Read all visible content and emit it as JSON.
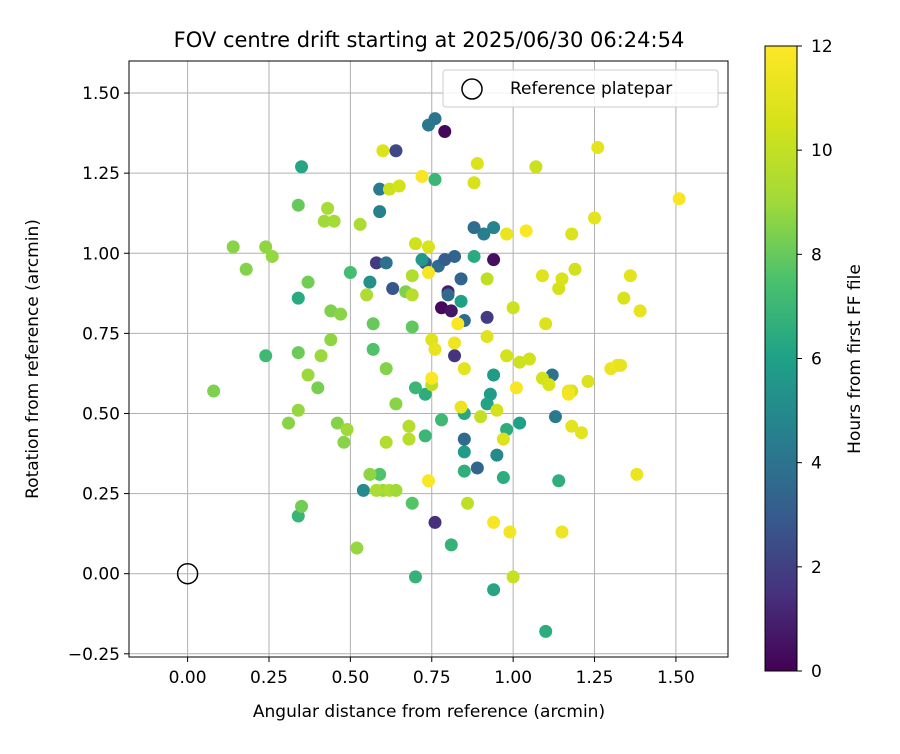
{
  "chart_data": {
    "type": "scatter",
    "title": "FOV centre drift starting at 2025/06/30 06:24:54",
    "xlabel": "Angular distance from reference (arcmin)",
    "ylabel": "Rotation from reference (arcmin)",
    "xlim": [
      -0.18,
      1.66
    ],
    "ylim": [
      -0.26,
      1.6
    ],
    "xticks": [
      "0.00",
      "0.25",
      "0.50",
      "0.75",
      "1.00",
      "1.25",
      "1.50"
    ],
    "yticks": [
      "−0.25",
      "0.00",
      "0.25",
      "0.50",
      "0.75",
      "1.00",
      "1.25",
      "1.50"
    ],
    "grid": true,
    "legend": {
      "placement": "top-right",
      "entries": [
        "Reference platepar"
      ]
    },
    "colorbar": {
      "label": "Hours from first FF file",
      "range": [
        0,
        12
      ],
      "ticks": [
        "0",
        "2",
        "4",
        "6",
        "8",
        "10",
        "12"
      ],
      "colormap": "viridis"
    },
    "reference_point": {
      "x": 0.0,
      "y": 0.0
    },
    "points": [
      [
        0.79,
        1.38,
        0.2
      ],
      [
        0.78,
        0.83,
        0.3
      ],
      [
        0.94,
        0.98,
        0.4
      ],
      [
        0.81,
        0.82,
        0.6
      ],
      [
        0.8,
        0.88,
        0.9
      ],
      [
        0.76,
        0.16,
        1.4
      ],
      [
        0.58,
        0.97,
        1.8
      ],
      [
        0.64,
        1.32,
        2.3
      ],
      [
        0.82,
        0.68,
        1.6
      ],
      [
        0.92,
        0.8,
        1.9
      ],
      [
        0.63,
        0.89,
        2.8
      ],
      [
        0.73,
        0.97,
        3.0
      ],
      [
        0.76,
        1.42,
        4.0
      ],
      [
        0.74,
        1.4,
        4.2
      ],
      [
        0.59,
        1.2,
        4.3
      ],
      [
        0.82,
        0.99,
        3.4
      ],
      [
        0.77,
        0.96,
        3.7
      ],
      [
        0.8,
        0.87,
        3.6
      ],
      [
        0.85,
        0.79,
        3.6
      ],
      [
        0.85,
        0.42,
        3.6
      ],
      [
        0.89,
        0.33,
        3.4
      ],
      [
        0.84,
        0.92,
        3.4
      ],
      [
        0.79,
        0.98,
        3.1
      ],
      [
        0.61,
        0.97,
        3.9
      ],
      [
        0.94,
        1.08,
        4.7
      ],
      [
        0.91,
        1.06,
        4.4
      ],
      [
        0.88,
        1.08,
        3.8
      ],
      [
        0.59,
        1.13,
        4.6
      ],
      [
        1.12,
        0.62,
        4.0
      ],
      [
        1.13,
        0.49,
        4.3
      ],
      [
        0.95,
        0.37,
        5.0
      ],
      [
        0.85,
        0.38,
        5.8
      ],
      [
        0.54,
        0.26,
        5.0
      ],
      [
        0.56,
        0.91,
        5.3
      ],
      [
        0.72,
        0.98,
        5.6
      ],
      [
        0.88,
        0.99,
        6.4
      ],
      [
        0.94,
        0.62,
        5.7
      ],
      [
        0.93,
        0.56,
        5.8
      ],
      [
        0.92,
        0.53,
        6.1
      ],
      [
        1.02,
        0.47,
        6.0
      ],
      [
        0.98,
        0.45,
        6.5
      ],
      [
        0.84,
        0.85,
        6.0
      ],
      [
        0.85,
        0.5,
        6.3
      ],
      [
        0.85,
        0.32,
        6.6
      ],
      [
        0.97,
        0.3,
        6.5
      ],
      [
        0.94,
        -0.05,
        6.2
      ],
      [
        1.1,
        -0.18,
        6.5
      ],
      [
        0.81,
        0.09,
        6.8
      ],
      [
        0.7,
        -0.01,
        6.8
      ],
      [
        0.73,
        0.56,
        6.5
      ],
      [
        0.73,
        0.43,
        7.0
      ],
      [
        0.7,
        0.58,
        7.0
      ],
      [
        0.78,
        0.48,
        7.1
      ],
      [
        0.35,
        1.27,
        6.2
      ],
      [
        0.34,
        0.86,
        6.4
      ],
      [
        0.34,
        0.18,
        6.9
      ],
      [
        0.24,
        0.68,
        7.1
      ],
      [
        0.5,
        0.94,
        7.3
      ],
      [
        0.57,
        0.7,
        7.6
      ],
      [
        0.59,
        0.31,
        7.6
      ],
      [
        0.69,
        0.22,
        7.7
      ],
      [
        0.69,
        0.77,
        7.9
      ],
      [
        0.76,
        1.23,
        7.0
      ],
      [
        1.14,
        0.29,
        6.6
      ],
      [
        0.57,
        0.78,
        8.0
      ],
      [
        0.34,
        1.15,
        8.0
      ],
      [
        0.34,
        0.69,
        8.1
      ],
      [
        0.4,
        0.58,
        8.3
      ],
      [
        0.37,
        0.91,
        8.2
      ],
      [
        0.44,
        0.82,
        8.4
      ],
      [
        0.46,
        0.47,
        8.5
      ],
      [
        0.48,
        0.41,
        8.6
      ],
      [
        0.52,
        0.08,
        8.8
      ],
      [
        0.56,
        0.31,
        8.7
      ],
      [
        0.6,
        0.26,
        8.9
      ],
      [
        0.64,
        0.53,
        8.6
      ],
      [
        0.61,
        0.64,
        8.5
      ],
      [
        0.67,
        0.88,
        8.4
      ],
      [
        0.35,
        0.21,
        8.2
      ],
      [
        0.31,
        0.47,
        8.6
      ],
      [
        0.34,
        0.51,
        8.8
      ],
      [
        0.37,
        0.62,
        8.9
      ],
      [
        0.41,
        0.68,
        8.9
      ],
      [
        0.44,
        0.73,
        8.7
      ],
      [
        0.47,
        0.81,
        8.6
      ],
      [
        0.49,
        0.45,
        9.0
      ],
      [
        0.08,
        0.57,
        8.4
      ],
      [
        0.18,
        0.95,
        8.5
      ],
      [
        0.14,
        1.02,
        8.6
      ],
      [
        0.24,
        1.02,
        8.7
      ],
      [
        0.26,
        0.99,
        8.8
      ],
      [
        0.42,
        1.1,
        9.0
      ],
      [
        0.45,
        1.1,
        9.1
      ],
      [
        0.43,
        1.14,
        9.2
      ],
      [
        0.53,
        1.09,
        9.3
      ],
      [
        0.55,
        0.87,
        9.4
      ],
      [
        0.58,
        0.26,
        9.3
      ],
      [
        0.62,
        0.26,
        9.4
      ],
      [
        0.64,
        0.26,
        9.0
      ],
      [
        0.61,
        0.41,
        9.5
      ],
      [
        0.68,
        0.46,
        9.6
      ],
      [
        0.68,
        0.42,
        9.7
      ],
      [
        0.69,
        0.93,
        9.5
      ],
      [
        0.69,
        0.87,
        9.7
      ],
      [
        0.75,
        0.59,
        9.8
      ],
      [
        0.86,
        0.22,
        9.9
      ],
      [
        0.9,
        0.49,
        10.0
      ],
      [
        0.92,
        0.92,
        9.9
      ],
      [
        1.0,
        -0.01,
        10.1
      ],
      [
        1.0,
        0.83,
        10.3
      ],
      [
        0.95,
        0.51,
        10.5
      ],
      [
        0.98,
        0.68,
        10.5
      ],
      [
        1.02,
        0.66,
        10.3
      ],
      [
        1.05,
        0.67,
        10.4
      ],
      [
        1.07,
        1.27,
        10.2
      ],
      [
        1.09,
        0.61,
        10.5
      ],
      [
        1.11,
        0.59,
        10.7
      ],
      [
        1.14,
        0.89,
        10.5
      ],
      [
        1.18,
        0.57,
        10.6
      ],
      [
        1.19,
        0.95,
        10.4
      ],
      [
        1.18,
        1.06,
        10.8
      ],
      [
        1.21,
        0.44,
        11.0
      ],
      [
        1.23,
        0.6,
        10.8
      ],
      [
        1.25,
        1.11,
        11.0
      ],
      [
        1.34,
        0.86,
        10.7
      ],
      [
        1.36,
        0.93,
        11.0
      ],
      [
        1.39,
        0.82,
        11.2
      ],
      [
        1.3,
        0.64,
        11.3
      ],
      [
        1.32,
        0.65,
        11.5
      ],
      [
        1.33,
        0.65,
        11.2
      ],
      [
        1.18,
        0.46,
        11.1
      ],
      [
        1.17,
        0.57,
        11.4
      ],
      [
        1.17,
        0.56,
        11.6
      ],
      [
        1.1,
        0.78,
        10.8
      ],
      [
        1.09,
        0.93,
        10.9
      ],
      [
        1.15,
        0.92,
        10.7
      ],
      [
        1.26,
        1.33,
        11.1
      ],
      [
        0.62,
        1.2,
        10.2
      ],
      [
        0.65,
        1.21,
        10.5
      ],
      [
        0.6,
        1.32,
        10.8
      ],
      [
        0.7,
        1.03,
        10.4
      ],
      [
        0.74,
        1.02,
        10.7
      ],
      [
        0.75,
        0.73,
        10.9
      ],
      [
        0.76,
        0.7,
        11.2
      ],
      [
        0.82,
        0.72,
        11.5
      ],
      [
        0.84,
        0.52,
        11.3
      ],
      [
        0.85,
        0.64,
        11.0
      ],
      [
        0.88,
        1.22,
        10.6
      ],
      [
        0.89,
        1.28,
        10.8
      ],
      [
        0.92,
        0.74,
        10.9
      ],
      [
        0.97,
        0.42,
        10.8
      ],
      [
        0.98,
        1.06,
        11.3
      ],
      [
        1.04,
        1.07,
        11.9
      ],
      [
        1.01,
        0.58,
        11.8
      ],
      [
        0.99,
        0.13,
        11.6
      ],
      [
        0.94,
        0.16,
        11.8
      ],
      [
        1.15,
        0.13,
        11.4
      ],
      [
        1.38,
        0.31,
        11.3
      ],
      [
        1.51,
        1.17,
        11.8
      ],
      [
        0.74,
        0.94,
        11.7
      ],
      [
        0.74,
        0.29,
        11.9
      ],
      [
        0.75,
        0.61,
        11.9
      ],
      [
        0.83,
        0.78,
        11.9
      ],
      [
        0.72,
        1.24,
        11.8
      ]
    ]
  }
}
